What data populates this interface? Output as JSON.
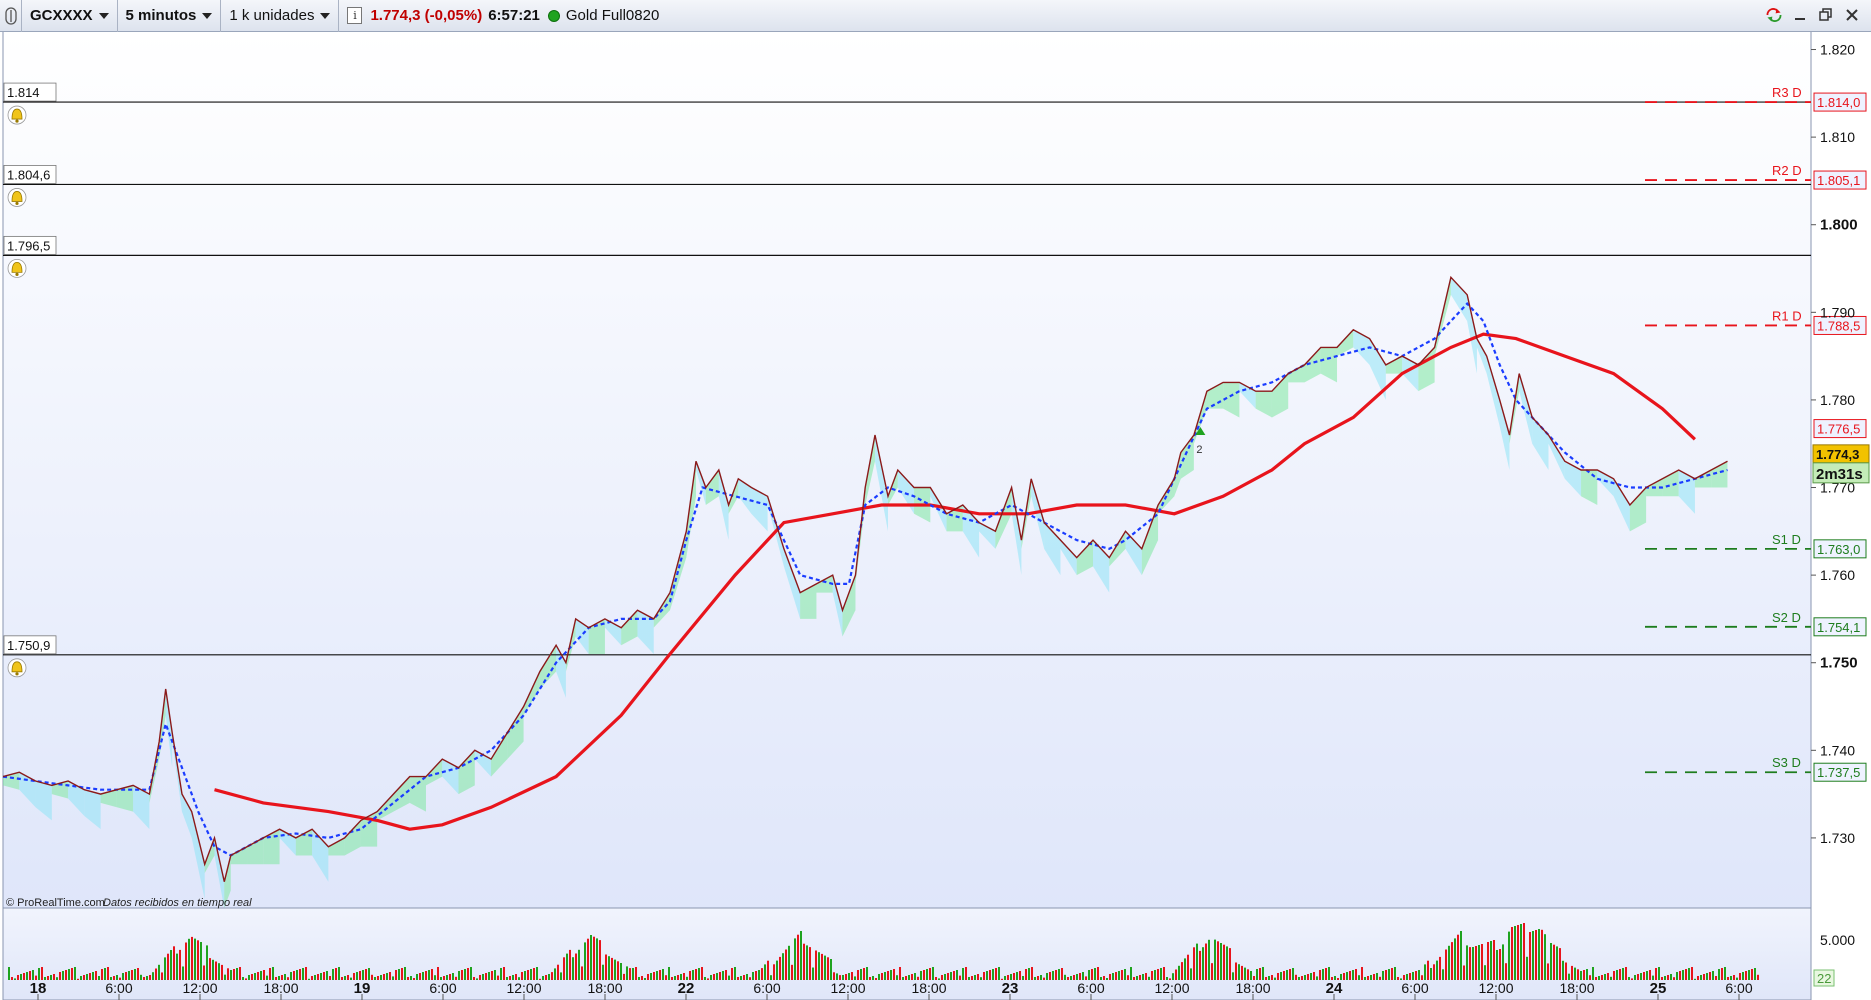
{
  "toolbar": {
    "symbol": "GCXXXX",
    "timeframe": "5 minutos",
    "units": "1 k unidades",
    "last_price": "1.774,3 (-0,05%)",
    "clock": "6:57:21",
    "instrument": "Gold Full0820"
  },
  "watermark": {
    "brand": "© ProRealTime.com",
    "note": "Datos recibidos en tiempo real"
  },
  "colors": {
    "price_line": "#8b1a1a",
    "moving_average": "#e8141c",
    "dotted_line": "#1a3cff",
    "cloud_up": "#7de8a0",
    "cloud_down": "#8fe4f5",
    "resistance": "#e8141c",
    "support": "#1e7d1e"
  },
  "chart_data": {
    "type": "line",
    "x_tick_labels": [
      "18",
      "6:00",
      "12:00",
      "18:00",
      "19",
      "6:00",
      "12:00",
      "18:00",
      "22",
      "6:00",
      "12:00",
      "18:00",
      "23",
      "6:00",
      "12:00",
      "18:00",
      "24",
      "6:00",
      "12:00",
      "18:00",
      "25",
      "6:00"
    ],
    "y_tick_labels": [
      "1.820",
      "1.810",
      "1.800",
      "1.790",
      "1.780",
      "1.770",
      "1.760",
      "1.750",
      "1.740",
      "1.730"
    ],
    "ylim": [
      1722,
      1822
    ],
    "horizontal_levels": [
      {
        "label": "1.814",
        "value": 1814.0
      },
      {
        "label": "1.804,6",
        "value": 1804.6
      },
      {
        "label": "1.796,5",
        "value": 1796.5
      },
      {
        "label": "1.750,9",
        "value": 1750.9
      }
    ],
    "pivots": [
      {
        "name": "R3 D",
        "value_label": "1.814,0",
        "value": 1814.0,
        "kind": "resistance"
      },
      {
        "name": "R2 D",
        "value_label": "1.805,1",
        "value": 1805.1,
        "kind": "resistance"
      },
      {
        "name": "R1 D",
        "value_label": "1.788,5",
        "value": 1788.5,
        "kind": "resistance"
      },
      {
        "name": "S1 D",
        "value_label": "1.763,0",
        "value": 1763.0,
        "kind": "support"
      },
      {
        "name": "S2 D",
        "value_label": "1.754,1",
        "value": 1754.1,
        "kind": "support"
      },
      {
        "name": "S3 D",
        "value_label": "1.737,5",
        "value": 1737.5,
        "kind": "support"
      }
    ],
    "price_axis_marks": [
      {
        "label": "1.776,5",
        "value": 1776.5
      },
      {
        "label": "1.774,3",
        "value": 1774.3
      }
    ],
    "countdown": "2m31s",
    "marker_label": "2",
    "price_series": [
      [
        0,
        1737
      ],
      [
        5,
        1737.5
      ],
      [
        10,
        1736.5
      ],
      [
        15,
        1736
      ],
      [
        20,
        1736.5
      ],
      [
        25,
        1735.5
      ],
      [
        30,
        1735
      ],
      [
        35,
        1735.5
      ],
      [
        40,
        1736
      ],
      [
        45,
        1735
      ],
      [
        48,
        1741
      ],
      [
        50,
        1747
      ],
      [
        52,
        1742
      ],
      [
        55,
        1735
      ],
      [
        58,
        1733
      ],
      [
        62,
        1727
      ],
      [
        65,
        1730
      ],
      [
        68,
        1725
      ],
      [
        70,
        1728
      ],
      [
        75,
        1729
      ],
      [
        80,
        1730
      ],
      [
        85,
        1731
      ],
      [
        90,
        1730
      ],
      [
        95,
        1731
      ],
      [
        100,
        1729
      ],
      [
        105,
        1730
      ],
      [
        110,
        1732
      ],
      [
        115,
        1733
      ],
      [
        120,
        1735
      ],
      [
        125,
        1737
      ],
      [
        130,
        1737
      ],
      [
        135,
        1739
      ],
      [
        140,
        1738
      ],
      [
        145,
        1740
      ],
      [
        150,
        1739
      ],
      [
        155,
        1742
      ],
      [
        160,
        1745
      ],
      [
        165,
        1749
      ],
      [
        170,
        1752
      ],
      [
        173,
        1750
      ],
      [
        176,
        1755
      ],
      [
        180,
        1754
      ],
      [
        185,
        1755
      ],
      [
        190,
        1754
      ],
      [
        195,
        1756
      ],
      [
        200,
        1755
      ],
      [
        205,
        1758
      ],
      [
        210,
        1765
      ],
      [
        213,
        1773
      ],
      [
        216,
        1770
      ],
      [
        220,
        1772
      ],
      [
        223,
        1768
      ],
      [
        226,
        1771
      ],
      [
        230,
        1770
      ],
      [
        235,
        1769
      ],
      [
        240,
        1763
      ],
      [
        245,
        1758
      ],
      [
        250,
        1759
      ],
      [
        255,
        1760
      ],
      [
        258,
        1756
      ],
      [
        262,
        1760
      ],
      [
        265,
        1770
      ],
      [
        268,
        1776
      ],
      [
        272,
        1769
      ],
      [
        275,
        1772
      ],
      [
        280,
        1770
      ],
      [
        285,
        1770
      ],
      [
        290,
        1767
      ],
      [
        295,
        1768
      ],
      [
        300,
        1766
      ],
      [
        305,
        1765
      ],
      [
        310,
        1770
      ],
      [
        313,
        1764
      ],
      [
        316,
        1771
      ],
      [
        320,
        1766
      ],
      [
        325,
        1764
      ],
      [
        330,
        1762
      ],
      [
        335,
        1764
      ],
      [
        340,
        1762
      ],
      [
        345,
        1765
      ],
      [
        350,
        1763
      ],
      [
        355,
        1768
      ],
      [
        360,
        1771
      ],
      [
        362,
        1774
      ],
      [
        366,
        1776
      ],
      [
        370,
        1781
      ],
      [
        375,
        1782
      ],
      [
        380,
        1782
      ],
      [
        385,
        1781
      ],
      [
        390,
        1781
      ],
      [
        395,
        1783
      ],
      [
        400,
        1784
      ],
      [
        405,
        1786
      ],
      [
        410,
        1786
      ],
      [
        415,
        1788
      ],
      [
        420,
        1787
      ],
      [
        425,
        1784
      ],
      [
        430,
        1785
      ],
      [
        435,
        1784
      ],
      [
        440,
        1786
      ],
      [
        445,
        1794
      ],
      [
        450,
        1792
      ],
      [
        453,
        1787
      ],
      [
        456,
        1785
      ],
      [
        460,
        1780
      ],
      [
        463,
        1776
      ],
      [
        466,
        1783
      ],
      [
        470,
        1778
      ],
      [
        475,
        1776
      ],
      [
        480,
        1773
      ],
      [
        485,
        1772
      ],
      [
        490,
        1772
      ],
      [
        495,
        1771
      ],
      [
        500,
        1768
      ],
      [
        505,
        1770
      ],
      [
        510,
        1771
      ],
      [
        515,
        1772
      ],
      [
        520,
        1771
      ],
      [
        525,
        1772
      ],
      [
        530,
        1773
      ]
    ],
    "dotted_series": [
      [
        0,
        1737
      ],
      [
        10,
        1736.5
      ],
      [
        20,
        1736
      ],
      [
        30,
        1735.5
      ],
      [
        45,
        1735.5
      ],
      [
        50,
        1743
      ],
      [
        55,
        1738
      ],
      [
        60,
        1733
      ],
      [
        65,
        1729
      ],
      [
        70,
        1728
      ],
      [
        80,
        1730
      ],
      [
        90,
        1730.5
      ],
      [
        100,
        1730
      ],
      [
        110,
        1731
      ],
      [
        120,
        1734
      ],
      [
        130,
        1737
      ],
      [
        140,
        1738
      ],
      [
        150,
        1740
      ],
      [
        160,
        1744
      ],
      [
        170,
        1750
      ],
      [
        180,
        1754
      ],
      [
        190,
        1755
      ],
      [
        200,
        1755
      ],
      [
        205,
        1757
      ],
      [
        210,
        1764
      ],
      [
        215,
        1770
      ],
      [
        225,
        1769
      ],
      [
        235,
        1768
      ],
      [
        240,
        1764
      ],
      [
        245,
        1760
      ],
      [
        255,
        1759
      ],
      [
        260,
        1759
      ],
      [
        265,
        1768
      ],
      [
        272,
        1770
      ],
      [
        280,
        1769
      ],
      [
        290,
        1767
      ],
      [
        300,
        1766
      ],
      [
        310,
        1768
      ],
      [
        320,
        1766
      ],
      [
        330,
        1764
      ],
      [
        340,
        1763
      ],
      [
        345,
        1764
      ],
      [
        355,
        1767
      ],
      [
        360,
        1771
      ],
      [
        365,
        1775
      ],
      [
        370,
        1779
      ],
      [
        380,
        1781
      ],
      [
        390,
        1782
      ],
      [
        400,
        1784
      ],
      [
        410,
        1785
      ],
      [
        420,
        1786
      ],
      [
        430,
        1785
      ],
      [
        440,
        1787
      ],
      [
        450,
        1791
      ],
      [
        455,
        1789
      ],
      [
        460,
        1784
      ],
      [
        465,
        1780
      ],
      [
        470,
        1778
      ],
      [
        480,
        1774
      ],
      [
        490,
        1771
      ],
      [
        500,
        1770
      ],
      [
        510,
        1770
      ],
      [
        520,
        1771
      ],
      [
        530,
        1772
      ]
    ],
    "moving_average": [
      [
        65,
        1735.5
      ],
      [
        80,
        1734
      ],
      [
        100,
        1733
      ],
      [
        115,
        1732
      ],
      [
        125,
        1731
      ],
      [
        135,
        1731.5
      ],
      [
        150,
        1733.5
      ],
      [
        170,
        1737
      ],
      [
        190,
        1744
      ],
      [
        205,
        1751
      ],
      [
        225,
        1760
      ],
      [
        240,
        1766
      ],
      [
        255,
        1767
      ],
      [
        270,
        1768
      ],
      [
        285,
        1768
      ],
      [
        300,
        1767
      ],
      [
        315,
        1767
      ],
      [
        330,
        1768
      ],
      [
        345,
        1768
      ],
      [
        360,
        1767
      ],
      [
        375,
        1769
      ],
      [
        390,
        1772
      ],
      [
        400,
        1775
      ],
      [
        415,
        1778
      ],
      [
        430,
        1783
      ],
      [
        445,
        1786
      ],
      [
        455,
        1787.5
      ],
      [
        465,
        1787
      ],
      [
        480,
        1785
      ],
      [
        495,
        1783
      ],
      [
        510,
        1779
      ],
      [
        520,
        1775.5
      ]
    ],
    "volume_scale_label": "5.000",
    "volume_last": "22"
  }
}
